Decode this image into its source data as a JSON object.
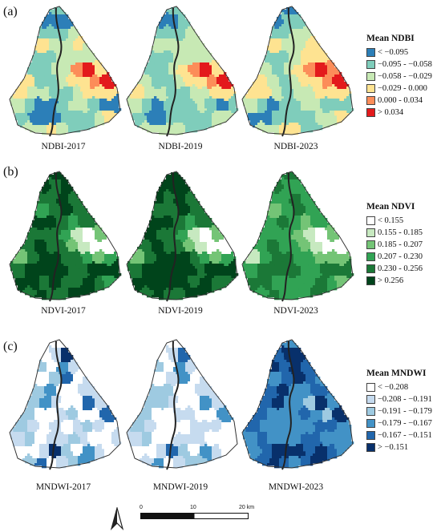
{
  "panels": [
    {
      "label": "(a)",
      "legend": {
        "title": "Mean NDBI",
        "classes": [
          {
            "label": "< −0.095",
            "color": "#2c7fb8"
          },
          {
            "label": "−0.095 - −0.058",
            "color": "#7fcdbb"
          },
          {
            "label": "−0.058 - −0.029",
            "color": "#c7e9b4"
          },
          {
            "label": "−0.029 - 0.000",
            "color": "#fee391"
          },
          {
            "label": "0.000 - 0.034",
            "color": "#fc8d59"
          },
          {
            "label": "> 0.034",
            "color": "#e31a1c"
          }
        ]
      },
      "maps": [
        {
          "caption": "NDBI-2017",
          "region_classes": [
            1,
            0,
            0,
            0,
            1,
            1,
            1,
            2,
            3,
            2,
            2,
            3,
            2,
            1,
            1,
            2,
            2,
            2,
            1,
            1,
            2,
            2,
            4,
            5,
            3,
            3,
            1,
            1,
            2,
            3,
            3,
            4,
            5,
            3,
            2,
            2,
            1,
            1,
            2,
            3,
            3,
            3,
            2,
            1,
            0,
            0,
            1,
            2,
            2,
            1,
            0,
            0
          ]
        },
        {
          "caption": "NDBI-2019",
          "region_classes": [
            1,
            0,
            0,
            1,
            1,
            1,
            1,
            2,
            2,
            2,
            2,
            2,
            2,
            1,
            1,
            2,
            2,
            2,
            1,
            1,
            2,
            3,
            4,
            5,
            3,
            2,
            1,
            1,
            2,
            3,
            3,
            4,
            5,
            3,
            2,
            2,
            1,
            1,
            2,
            2,
            3,
            3,
            2,
            1,
            0,
            1,
            1,
            1,
            2,
            1,
            0,
            1
          ]
        },
        {
          "caption": "NDBI-2023",
          "region_classes": [
            0,
            0,
            1,
            1,
            1,
            1,
            2,
            2,
            3,
            2,
            2,
            3,
            3,
            1,
            1,
            2,
            3,
            3,
            2,
            1,
            2,
            3,
            4,
            5,
            4,
            3,
            2,
            1,
            2,
            3,
            3,
            4,
            5,
            3,
            3,
            2,
            1,
            2,
            2,
            3,
            3,
            3,
            2,
            1,
            0,
            1,
            1,
            2,
            2,
            1,
            1,
            1
          ]
        }
      ]
    },
    {
      "label": "(b)",
      "legend": {
        "title": "Mean NDVI",
        "classes": [
          {
            "label": "< 0.155",
            "color": "#ffffff"
          },
          {
            "label": "0.155 - 0.185",
            "color": "#c7e9c0"
          },
          {
            "label": "0.185 - 0.207",
            "color": "#74c476"
          },
          {
            "label": "0.207 - 0.230",
            "color": "#31a354"
          },
          {
            "label": "0.230 - 0.256",
            "color": "#1b7837"
          },
          {
            "label": "> 0.256",
            "color": "#00441b"
          }
        ]
      },
      "maps": [
        {
          "caption": "NDVI-2017",
          "region_classes": [
            5,
            5,
            4,
            5,
            4,
            4,
            5,
            4,
            3,
            4,
            5,
            4,
            4,
            5,
            5,
            4,
            3,
            4,
            4,
            4,
            4,
            3,
            1,
            0,
            2,
            4,
            5,
            4,
            4,
            2,
            1,
            0,
            0,
            2,
            4,
            5,
            5,
            4,
            4,
            3,
            2,
            3,
            4,
            5,
            5,
            5,
            5,
            4,
            4,
            5,
            5,
            5
          ]
        },
        {
          "caption": "NDVI-2019",
          "region_classes": [
            5,
            5,
            5,
            5,
            5,
            4,
            5,
            4,
            4,
            4,
            5,
            4,
            4,
            5,
            5,
            4,
            3,
            4,
            5,
            4,
            4,
            3,
            1,
            0,
            2,
            4,
            5,
            4,
            4,
            2,
            1,
            0,
            0,
            2,
            4,
            5,
            5,
            5,
            4,
            3,
            2,
            3,
            4,
            5,
            5,
            5,
            5,
            5,
            4,
            5,
            5,
            5
          ]
        },
        {
          "caption": "NDVI-2023",
          "region_classes": [
            4,
            4,
            3,
            3,
            3,
            3,
            4,
            3,
            2,
            3,
            4,
            3,
            3,
            3,
            4,
            3,
            2,
            3,
            3,
            3,
            3,
            2,
            1,
            0,
            2,
            3,
            4,
            3,
            3,
            2,
            1,
            0,
            0,
            1,
            3,
            4,
            4,
            3,
            3,
            2,
            2,
            2,
            3,
            4,
            4,
            4,
            4,
            3,
            3,
            4,
            4,
            4
          ]
        }
      ]
    },
    {
      "label": "(c)",
      "legend": {
        "title": "Mean MNDWI",
        "classes": [
          {
            "label": "< −0.208",
            "color": "#ffffff"
          },
          {
            "label": "−0.208 - −0.191",
            "color": "#c6dbef"
          },
          {
            "label": "−0.191 - −0.179",
            "color": "#9ecae1"
          },
          {
            "label": "−0.179 - −0.167",
            "color": "#4292c6"
          },
          {
            "label": "−0.167 - −0.151",
            "color": "#2166ac"
          },
          {
            "label": "> −0.151",
            "color": "#08306b"
          }
        ]
      },
      "maps": [
        {
          "caption": "MNDWI-2017",
          "region_classes": [
            0,
            0,
            1,
            5,
            2,
            0,
            3,
            1,
            0,
            2,
            4,
            0,
            1,
            2,
            3,
            0,
            0,
            1,
            2,
            3,
            1,
            0,
            0,
            4,
            1,
            2,
            0,
            0,
            1,
            2,
            0,
            0,
            4,
            2,
            1,
            0,
            1,
            0,
            1,
            2,
            1,
            0,
            1,
            2,
            0,
            1,
            1,
            2,
            1,
            0,
            0,
            1
          ]
        },
        {
          "caption": "MNDWI-2019",
          "region_classes": [
            0,
            0,
            1,
            4,
            2,
            0,
            3,
            1,
            0,
            1,
            3,
            0,
            1,
            2,
            2,
            0,
            0,
            1,
            2,
            2,
            1,
            0,
            0,
            3,
            1,
            2,
            0,
            0,
            1,
            1,
            0,
            0,
            3,
            2,
            1,
            0,
            0,
            0,
            1,
            1,
            1,
            0,
            1,
            2,
            0,
            0,
            1,
            1,
            1,
            0,
            0,
            0
          ]
        },
        {
          "caption": "MNDWI-2023",
          "region_classes": [
            3,
            4,
            5,
            5,
            5,
            4,
            5,
            4,
            3,
            4,
            5,
            4,
            3,
            4,
            5,
            3,
            3,
            4,
            4,
            5,
            3,
            3,
            2,
            5,
            3,
            4,
            3,
            3,
            3,
            4,
            3,
            2,
            5,
            4,
            3,
            3,
            3,
            3,
            3,
            4,
            4,
            3,
            3,
            4,
            3,
            3,
            3,
            4,
            4,
            3,
            3,
            3
          ]
        }
      ]
    }
  ],
  "scale_bar": {
    "labels": [
      "0",
      "10",
      "20 km"
    ]
  },
  "north_arrow": {
    "icon": "north-arrow-icon"
  }
}
